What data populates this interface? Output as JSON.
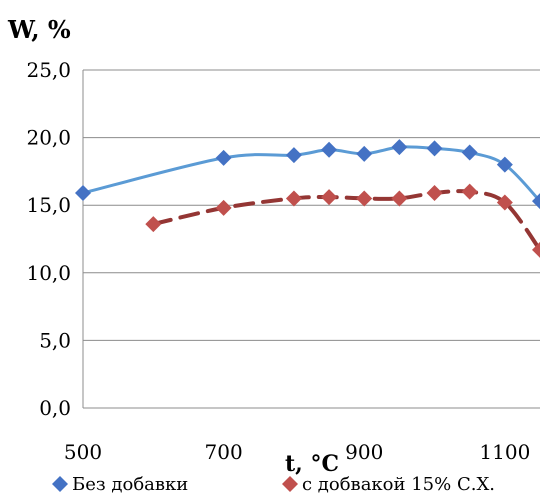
{
  "chart_data": {
    "type": "scatter",
    "ylabel": "W, %",
    "xlabel": "t, °C",
    "xlim": [
      500,
      1150
    ],
    "ylim": [
      0,
      25
    ],
    "xticks": [
      500,
      700,
      900,
      1100
    ],
    "xtick_labels": [
      "500",
      "700",
      "900",
      "1100"
    ],
    "yticks": [
      0,
      5,
      10,
      15,
      20,
      25
    ],
    "ytick_labels": [
      "0,0",
      "5,0",
      "10,0",
      "15,0",
      "20,0",
      "25,0"
    ],
    "grid": "horizontal",
    "legend_position": "bottom",
    "series": [
      {
        "name": "Без добавки",
        "color": "#4472c4",
        "line_color": "#5b9bd5",
        "line_style": "solid",
        "marker": "diamond",
        "x": [
          500,
          700,
          800,
          850,
          900,
          950,
          1000,
          1050,
          1100,
          1150
        ],
        "y": [
          15.9,
          18.5,
          18.7,
          19.1,
          18.8,
          19.3,
          19.2,
          18.9,
          18.0,
          15.3
        ]
      },
      {
        "name": "с добвакой 15% С.Х.",
        "color": "#c0504d",
        "line_color": "#943634",
        "line_style": "dashed",
        "marker": "diamond",
        "x": [
          600,
          700,
          800,
          850,
          900,
          950,
          1000,
          1050,
          1100,
          1150
        ],
        "y": [
          13.6,
          14.8,
          15.5,
          15.6,
          15.5,
          15.5,
          15.9,
          16.0,
          15.2,
          11.7
        ]
      }
    ]
  }
}
